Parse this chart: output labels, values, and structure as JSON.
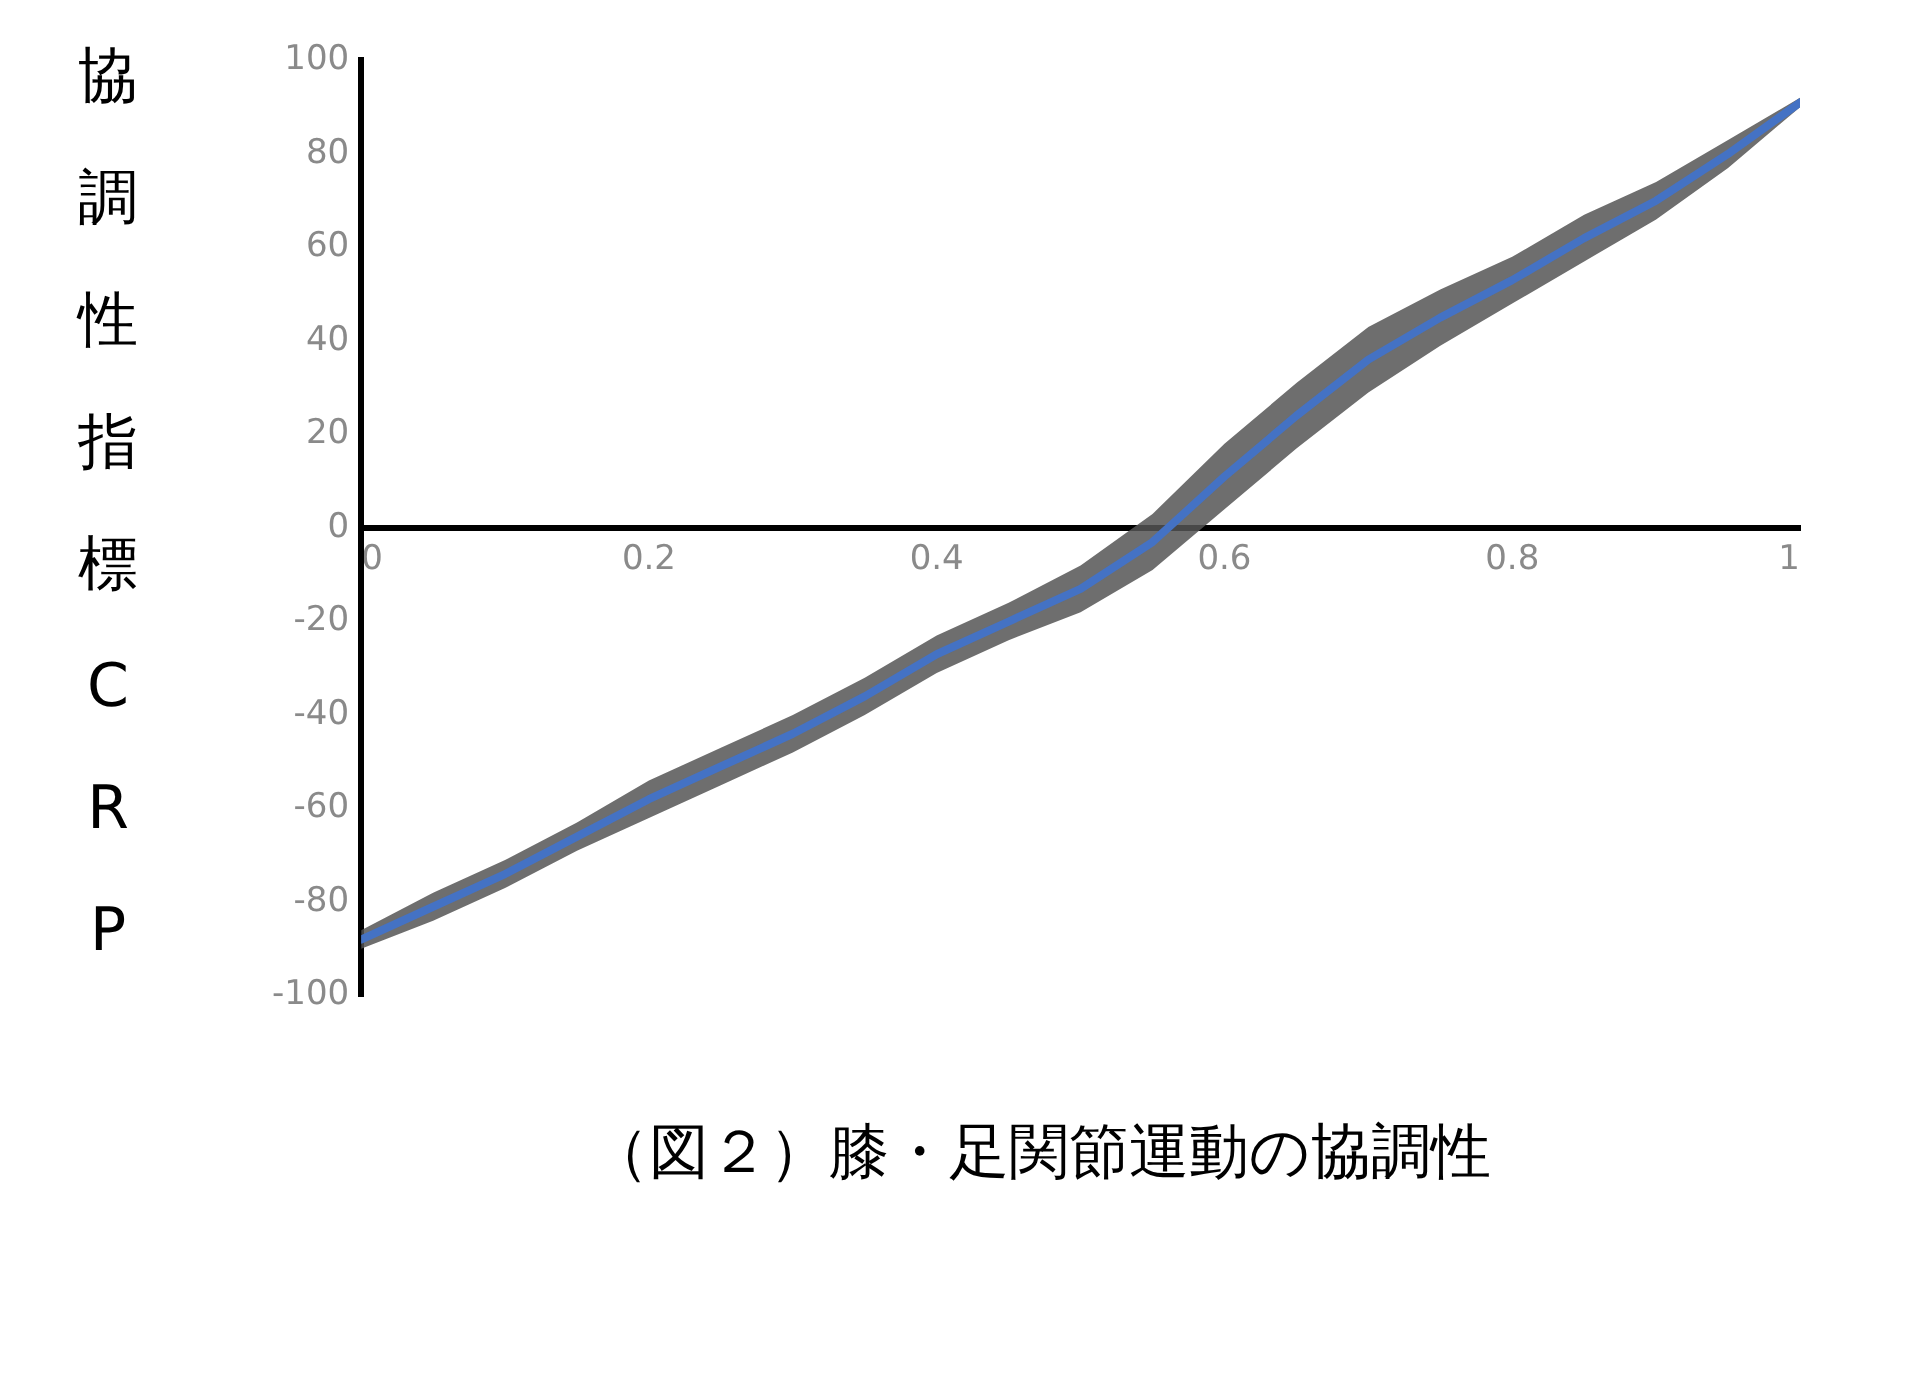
{
  "chart_data": {
    "type": "line",
    "title": "（図２）膝・足関節運動の協調性",
    "ylabel": "協調性指標CRP",
    "x": [
      0,
      0.05,
      0.1,
      0.15,
      0.2,
      0.25,
      0.3,
      0.35,
      0.4,
      0.45,
      0.5,
      0.55,
      0.6,
      0.65,
      0.7,
      0.75,
      0.8,
      0.85,
      0.9,
      0.95,
      1
    ],
    "series": [
      {
        "color": "#4472c4",
        "values": [
          -88,
          -81,
          -74,
          -66,
          -58,
          -51,
          -44,
          -36,
          -27,
          -20,
          -13,
          -3,
          11,
          24,
          36,
          45,
          53,
          62,
          70,
          80,
          91
        ],
        "lower": [
          -90,
          -84,
          -77,
          -69,
          -62,
          -55,
          -48,
          -40,
          -31,
          -24,
          -18,
          -9,
          4,
          17,
          29,
          39,
          48,
          57,
          66,
          77,
          90
        ],
        "upper": [
          -86,
          -78,
          -71,
          -63,
          -54,
          -47,
          -40,
          -32,
          -23,
          -16,
          -8,
          3,
          18,
          31,
          43,
          51,
          58,
          67,
          74,
          83,
          92
        ]
      }
    ],
    "xlim": [
      0,
      1
    ],
    "xticks": [
      0,
      0.2,
      0.4,
      0.6,
      0.8,
      1
    ],
    "ylim": [
      -100,
      100
    ],
    "yticks": [
      -100,
      -80,
      -60,
      -40,
      -20,
      0,
      20,
      40,
      60,
      80,
      100
    ],
    "grid": false,
    "marker": "none",
    "line_style": "solid"
  }
}
